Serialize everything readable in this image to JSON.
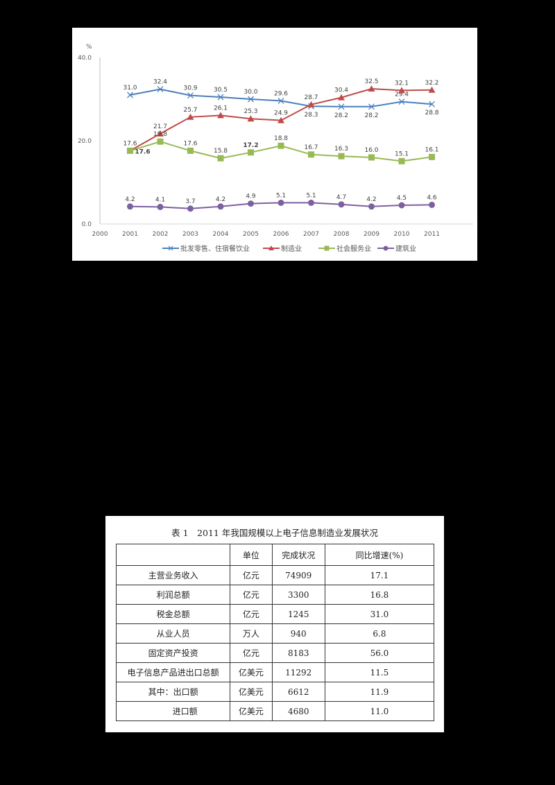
{
  "chart_data": {
    "type": "line",
    "title": "",
    "ylabel": "%",
    "xlabel": "",
    "ylim": [
      0,
      40
    ],
    "y_ticks": [
      "0.0",
      "20.0",
      "40.0"
    ],
    "x_ticks": [
      "2000",
      "2001",
      "2002",
      "2003",
      "2004",
      "2005",
      "2006",
      "2007",
      "2008",
      "2009",
      "2010",
      "2011"
    ],
    "x": [
      "2001",
      "2002",
      "2003",
      "2004",
      "2005",
      "2006",
      "2007",
      "2008",
      "2009",
      "2010",
      "2011"
    ],
    "grid": false,
    "legend_position": "bottom",
    "series": [
      {
        "name": "批发零售、住宿餐饮业",
        "color": "#4a7ebb",
        "marker": "x",
        "values": [
          31.0,
          32.4,
          30.9,
          30.5,
          30.0,
          29.6,
          28.3,
          28.2,
          28.2,
          29.4,
          28.8
        ]
      },
      {
        "name": "制造业",
        "color": "#be4b48",
        "marker": "triangle",
        "values": [
          17.6,
          21.7,
          25.7,
          26.1,
          25.3,
          24.9,
          28.7,
          30.4,
          32.5,
          32.1,
          32.2
        ]
      },
      {
        "name": "社会服务业",
        "color": "#98b954",
        "marker": "square",
        "values": [
          17.6,
          19.8,
          17.6,
          15.8,
          17.2,
          18.8,
          16.7,
          16.3,
          16.0,
          15.1,
          16.1
        ]
      },
      {
        "name": "建筑业",
        "color": "#7d60a0",
        "marker": "circle",
        "values": [
          4.2,
          4.1,
          3.7,
          4.2,
          4.9,
          5.1,
          5.1,
          4.7,
          4.2,
          4.5,
          4.6
        ]
      }
    ]
  },
  "table": {
    "title": "表 1　2011 年我国规模以上电子信息制造业发展状况",
    "headers": [
      "",
      "单位",
      "完成状况",
      "同比增速(%)"
    ],
    "rows": [
      {
        "item": "主营业务收入",
        "unit": "亿元",
        "value": "74909",
        "growth": "17.1"
      },
      {
        "item": "利润总额",
        "unit": "亿元",
        "value": "3300",
        "growth": "16.8"
      },
      {
        "item": "税金总额",
        "unit": "亿元",
        "value": "1245",
        "growth": "31.0"
      },
      {
        "item": "从业人员",
        "unit": "万人",
        "value": "940",
        "growth": "6.8"
      },
      {
        "item": "固定资产投资",
        "unit": "亿元",
        "value": "8183",
        "growth": "56.0"
      },
      {
        "item": "电子信息产品进出口总额",
        "unit": "亿美元",
        "value": "11292",
        "growth": "11.5"
      },
      {
        "item": "其中：出口额",
        "unit": "亿美元",
        "value": "6612",
        "growth": "11.9"
      },
      {
        "item": "进口额",
        "unit": "亿美元",
        "value": "4680",
        "growth": "11.0"
      }
    ]
  }
}
